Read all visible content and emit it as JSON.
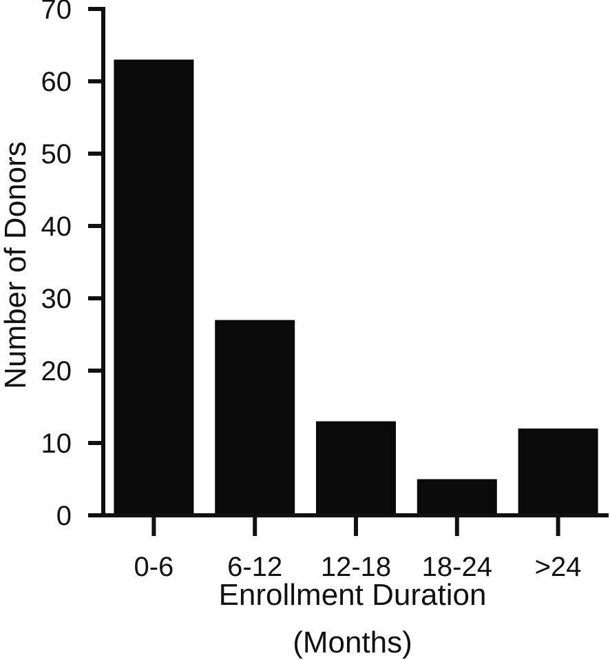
{
  "chart_data": {
    "type": "bar",
    "categories": [
      "0-6",
      "6-12",
      "12-18",
      "18-24",
      ">24"
    ],
    "values": [
      63,
      27,
      13,
      5,
      12
    ],
    "xlabel": [
      "Enrollment Duration",
      "(Months)"
    ],
    "ylabel": "Number of Donors",
    "ylim": [
      0,
      70
    ],
    "yticks": [
      0,
      10,
      20,
      30,
      40,
      50,
      60,
      70
    ],
    "grid": false,
    "bar_color": "#0a0a0a",
    "axis_color": "#111111"
  }
}
